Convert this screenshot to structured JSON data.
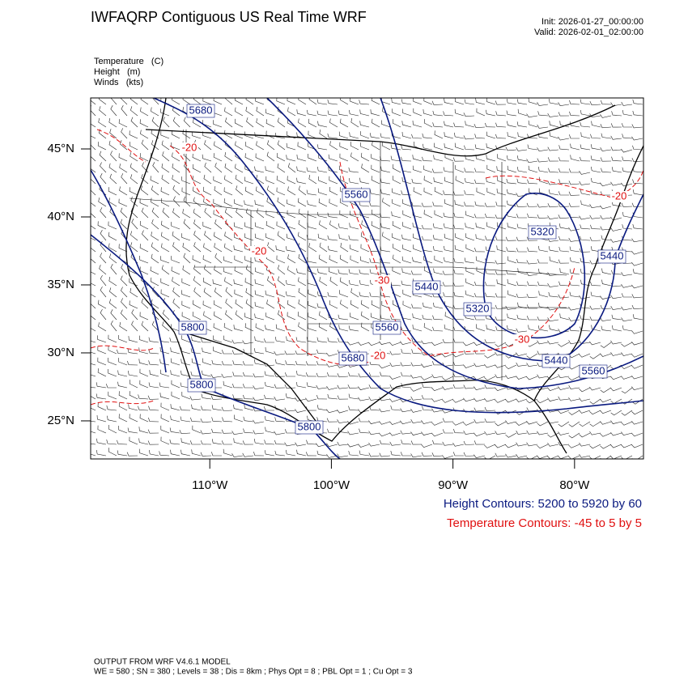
{
  "header": {
    "title": "IWFAQRP Contiguous US Real Time WRF",
    "init": "Init: 2026-01-27_00:00:00",
    "valid": "Valid: 2026-02-01_02:00:00"
  },
  "fields": [
    "Temperature   (C)",
    "Height   (m)",
    "Winds   (kts)"
  ],
  "map": {
    "lat_range": [
      22.2,
      48.75
    ],
    "lon_range": [
      -119.8,
      -74.33
    ],
    "lat_ticks": [
      {
        "value": 45,
        "label": "45°N"
      },
      {
        "value": 40,
        "label": "40°N"
      },
      {
        "value": 35,
        "label": "35°N"
      },
      {
        "value": 30,
        "label": "30°N"
      },
      {
        "value": 25,
        "label": "25°N"
      }
    ],
    "lon_ticks": [
      {
        "value": -110,
        "label": "110°W"
      },
      {
        "value": -100,
        "label": "100°W"
      },
      {
        "value": -90,
        "label": "90°W"
      },
      {
        "value": -80,
        "label": "80°W"
      }
    ],
    "height_labels": [
      "5680",
      "5560",
      "5440",
      "5320",
      "5440",
      "5320",
      "5560",
      "5800",
      "5680",
      "5440",
      "5560",
      "5800",
      "5800"
    ],
    "temperature_labels": [
      "-20",
      "-20",
      "-30",
      "-30",
      "-20",
      "-20"
    ]
  },
  "legend": {
    "height": "Height Contours: 5200 to 5920 by 60",
    "temperature": "Temperature Contours: -45 to 5 by 5"
  },
  "footer": {
    "line1": "OUTPUT FROM WRF V4.6.1 MODEL",
    "line2": "WE = 580 ; SN = 380 ; Levels = 38 ; Dis = 8km ; Phys Opt = 8 ; PBL Opt = 1 ; Cu Opt = 3"
  }
}
